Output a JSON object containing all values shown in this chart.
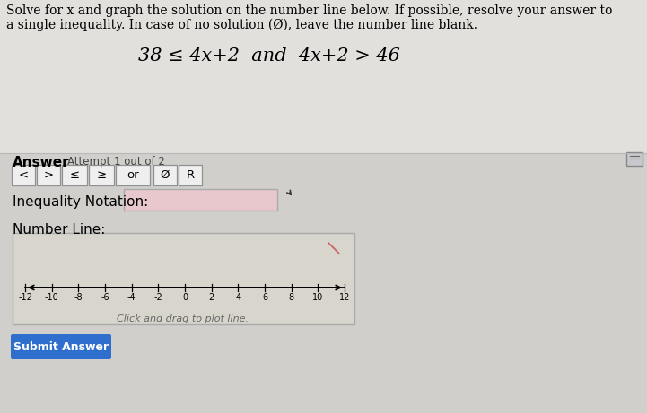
{
  "bg_top": "#dcdcdc",
  "bg_bottom": "#d0cfcb",
  "white": "#ffffff",
  "black": "#000000",
  "blue_btn": "#2e6fce",
  "title_text1": "Solve for x and graph the solution on the number line below. If possible, resolve your answer to",
  "title_text2": "a single inequality. In case of no solution (Ø), leave the number line blank.",
  "equation": "38 ≤ 4x+2  and  4x+2 > 46",
  "answer_label": "Answer",
  "attempt_label": "Attempt 1 out of 2",
  "buttons": [
    "<",
    ">",
    "≤",
    "≥",
    "or",
    "Ø",
    "R"
  ],
  "inequality_label": "Inequality Notation:",
  "number_line_label": "Number Line:",
  "number_line_ticks": [
    -12,
    -10,
    -8,
    -6,
    -4,
    -2,
    0,
    2,
    4,
    6,
    8,
    10,
    12
  ],
  "drag_text": "Click and drag to plot line.",
  "submit_text": "Submit Answer",
  "input_box_color": "#e8c8cc",
  "number_line_bg": "#d8d4cc",
  "cancel_color": "#cc6666",
  "border_color": "#b0b0b0"
}
